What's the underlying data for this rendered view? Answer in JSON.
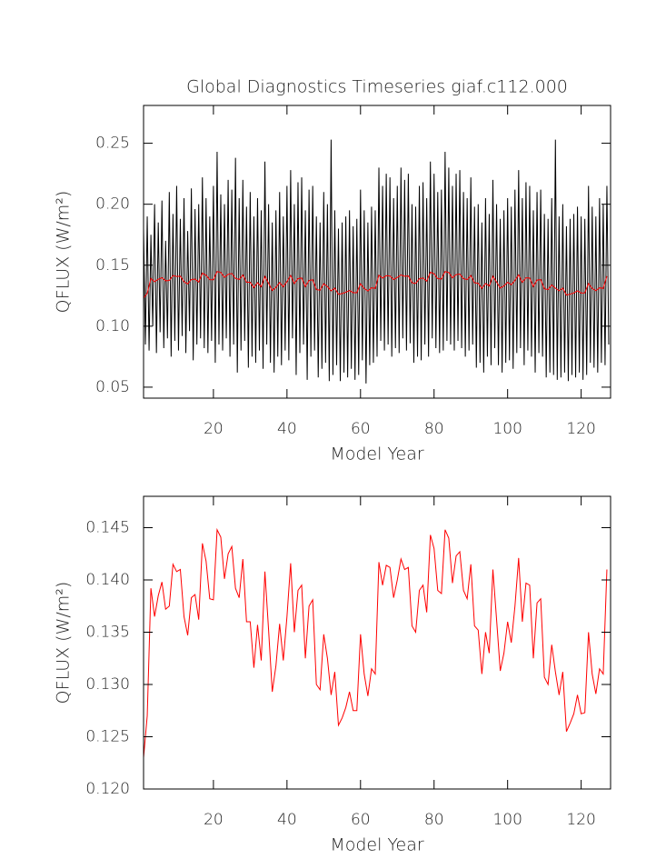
{
  "chart_data": [
    {
      "type": "line",
      "title": "Global Diagnostics Timeseries giaf.c112.000",
      "xlabel": "Model Year",
      "ylabel": "QFLUX (W/m²)",
      "xlim": [
        1,
        128
      ],
      "ylim": [
        0.041,
        0.281
      ],
      "xticks": [
        20,
        40,
        60,
        80,
        100,
        120
      ],
      "yticks": [
        0.05,
        {
          "value": 0.1,
          "label": "0.10"
        },
        0.15,
        {
          "value": 0.2,
          "label": "0.20"
        },
        0.25
      ],
      "series": [
        {
          "color": "#000000",
          "x": [
            1,
            1.5,
            2,
            2.5,
            3,
            3.5,
            4,
            4.5,
            5,
            5.5,
            6,
            6.5,
            7,
            7.5,
            8,
            8.5,
            9,
            9.5,
            10,
            10.5,
            11,
            11.5,
            12,
            12.5,
            13,
            13.5,
            14,
            14.5,
            15,
            15.5,
            16,
            16.5,
            17,
            17.5,
            18,
            18.5,
            19,
            19.5,
            20,
            20.5,
            21,
            21.5,
            22,
            22.5,
            23,
            23.5,
            24,
            24.5,
            25,
            25.5,
            26,
            26.5,
            27,
            27.5,
            28,
            28.5,
            29,
            29.5,
            30,
            30.5,
            31,
            31.5,
            32,
            32.5,
            33,
            33.5,
            34,
            34.5,
            35,
            35.5,
            36,
            36.5,
            37,
            37.5,
            38,
            38.5,
            39,
            39.5,
            40,
            40.5,
            41,
            41.5,
            42,
            42.5,
            43,
            43.5,
            44,
            44.5,
            45,
            45.5,
            46,
            46.5,
            47,
            47.5,
            48,
            48.5,
            49,
            49.5,
            50,
            50.5,
            51,
            51.5,
            52,
            52.5,
            53,
            53.5,
            54,
            54.5,
            55,
            55.5,
            56,
            56.5,
            57,
            57.5,
            58,
            58.5,
            59,
            59.5,
            60,
            60.5,
            61,
            61.5,
            62,
            62.5,
            63,
            63.5,
            64,
            64.5,
            65,
            65.5,
            66,
            66.5,
            67,
            67.5,
            68,
            68.5,
            69,
            69.5,
            70,
            70.5,
            71,
            71.5,
            72,
            72.5,
            73,
            73.5,
            74,
            74.5,
            75,
            75.5,
            76,
            76.5,
            77,
            77.5,
            78,
            78.5,
            79,
            79.5,
            80,
            80.5,
            81,
            81.5,
            82,
            82.5,
            83,
            83.5,
            84,
            84.5,
            85,
            85.5,
            86,
            86.5,
            87,
            87.5,
            88,
            88.5,
            89,
            89.5,
            90,
            90.5,
            91,
            91.5,
            92,
            92.5,
            93,
            93.5,
            94,
            94.5,
            95,
            95.5,
            96,
            96.5,
            97,
            97.5,
            98,
            98.5,
            99,
            99.5,
            100,
            100.5,
            101,
            101.5,
            102,
            102.5,
            103,
            103.5,
            104,
            104.5,
            105,
            105.5,
            106,
            106.5,
            107,
            107.5,
            108,
            108.5,
            109,
            109.5,
            110,
            110.5,
            111,
            111.5,
            112,
            112.5,
            113,
            113.5,
            114,
            114.5,
            115,
            115.5,
            116,
            116.5,
            117,
            117.5,
            118,
            118.5,
            119,
            119.5,
            120,
            120.5,
            121,
            121.5,
            122,
            122.5,
            123,
            123.5,
            124,
            124.5,
            125,
            125.5,
            126,
            126.5,
            127,
            127.5
          ],
          "values": [
            0.18,
            0.085,
            0.19,
            0.08,
            0.175,
            0.1,
            0.2,
            0.078,
            0.185,
            0.095,
            0.203,
            0.082,
            0.17,
            0.09,
            0.21,
            0.075,
            0.192,
            0.088,
            0.215,
            0.08,
            0.188,
            0.092,
            0.205,
            0.078,
            0.178,
            0.096,
            0.213,
            0.072,
            0.196,
            0.085,
            0.2,
            0.09,
            0.222,
            0.082,
            0.205,
            0.078,
            0.19,
            0.088,
            0.215,
            0.07,
            0.243,
            0.085,
            0.208,
            0.08,
            0.2,
            0.09,
            0.22,
            0.075,
            0.212,
            0.085,
            0.238,
            0.062,
            0.205,
            0.08,
            0.22,
            0.088,
            0.198,
            0.066,
            0.21,
            0.075,
            0.19,
            0.07,
            0.205,
            0.08,
            0.195,
            0.065,
            0.235,
            0.085,
            0.2,
            0.07,
            0.185,
            0.062,
            0.195,
            0.075,
            0.21,
            0.068,
            0.19,
            0.08,
            0.215,
            0.072,
            0.228,
            0.09,
            0.2,
            0.06,
            0.218,
            0.078,
            0.222,
            0.085,
            0.195,
            0.056,
            0.212,
            0.075,
            0.215,
            0.08,
            0.19,
            0.058,
            0.185,
            0.065,
            0.21,
            0.07,
            0.2,
            0.055,
            0.253,
            0.06,
            0.195,
            0.068,
            0.18,
            0.055,
            0.185,
            0.062,
            0.19,
            0.058,
            0.195,
            0.065,
            0.182,
            0.056,
            0.188,
            0.06,
            0.212,
            0.072,
            0.195,
            0.053,
            0.185,
            0.068,
            0.198,
            0.07,
            0.195,
            0.075,
            0.23,
            0.088,
            0.215,
            0.08,
            0.225,
            0.085,
            0.222,
            0.075,
            0.205,
            0.082,
            0.215,
            0.078,
            0.23,
            0.09,
            0.22,
            0.08,
            0.225,
            0.086,
            0.2,
            0.07,
            0.198,
            0.075,
            0.215,
            0.072,
            0.218,
            0.085,
            0.205,
            0.075,
            0.235,
            0.09,
            0.225,
            0.082,
            0.21,
            0.078,
            0.212,
            0.08,
            0.243,
            0.088,
            0.23,
            0.085,
            0.215,
            0.08,
            0.225,
            0.088,
            0.228,
            0.082,
            0.21,
            0.075,
            0.205,
            0.08,
            0.222,
            0.085,
            0.198,
            0.066,
            0.2,
            0.07,
            0.185,
            0.062,
            0.205,
            0.075,
            0.192,
            0.068,
            0.22,
            0.082,
            0.2,
            0.068,
            0.188,
            0.062,
            0.195,
            0.07,
            0.205,
            0.072,
            0.198,
            0.065,
            0.212,
            0.078,
            0.228,
            0.082,
            0.205,
            0.068,
            0.218,
            0.08,
            0.215,
            0.075,
            0.195,
            0.062,
            0.21,
            0.078,
            0.212,
            0.075,
            0.192,
            0.058,
            0.188,
            0.062,
            0.205,
            0.06,
            0.253,
            0.056,
            0.19,
            0.058,
            0.2,
            0.062,
            0.182,
            0.055,
            0.188,
            0.06,
            0.192,
            0.058,
            0.198,
            0.062,
            0.19,
            0.056,
            0.188,
            0.06,
            0.215,
            0.07,
            0.198,
            0.066,
            0.19,
            0.062,
            0.205,
            0.07,
            0.2,
            0.068,
            0.215,
            0.085
          ]
        },
        {
          "color": "#ff0000",
          "x": [
            1,
            2,
            3,
            4,
            5,
            6,
            7,
            8,
            9,
            10,
            11,
            12,
            13,
            14,
            15,
            16,
            17,
            18,
            19,
            20,
            21,
            22,
            23,
            24,
            25,
            26,
            27,
            28,
            29,
            30,
            31,
            32,
            33,
            34,
            35,
            36,
            37,
            38,
            39,
            40,
            41,
            42,
            43,
            44,
            45,
            46,
            47,
            48,
            49,
            50,
            51,
            52,
            53,
            54,
            55,
            56,
            57,
            58,
            59,
            60,
            61,
            62,
            63,
            64,
            65,
            66,
            67,
            68,
            69,
            70,
            71,
            72,
            73,
            74,
            75,
            76,
            77,
            78,
            79,
            80,
            81,
            82,
            83,
            84,
            85,
            86,
            87,
            88,
            89,
            90,
            91,
            92,
            93,
            94,
            95,
            96,
            97,
            98,
            99,
            100,
            101,
            102,
            103,
            104,
            105,
            106,
            107,
            108,
            109,
            110,
            111,
            112,
            113,
            114,
            115,
            116,
            117,
            118,
            119,
            120,
            121,
            122,
            123,
            124,
            125,
            126,
            127
          ],
          "values": [
            0.123,
            0.127,
            0.1392,
            0.1365,
            0.1385,
            0.1398,
            0.1372,
            0.1375,
            0.1415,
            0.1408,
            0.141,
            0.1365,
            0.1347,
            0.1383,
            0.1386,
            0.1362,
            0.1435,
            0.1418,
            0.1382,
            0.1381,
            0.1448,
            0.1441,
            0.1401,
            0.1425,
            0.1432,
            0.1392,
            0.1383,
            0.142,
            0.136,
            0.136,
            0.1316,
            0.1357,
            0.1323,
            0.1408,
            0.1352,
            0.1293,
            0.1318,
            0.1358,
            0.1323,
            0.1365,
            0.1416,
            0.135,
            0.139,
            0.1395,
            0.1325,
            0.1375,
            0.1381,
            0.13,
            0.1295,
            0.1348,
            0.1325,
            0.129,
            0.1312,
            0.1261,
            0.1268,
            0.1278,
            0.1293,
            0.1275,
            0.1275,
            0.1348,
            0.131,
            0.1289,
            0.1315,
            0.131,
            0.1417,
            0.1395,
            0.1414,
            0.1412,
            0.1383,
            0.14,
            0.142,
            0.141,
            0.1412,
            0.1356,
            0.135,
            0.139,
            0.1395,
            0.1369,
            0.1443,
            0.143,
            0.139,
            0.1387,
            0.1448,
            0.144,
            0.1397,
            0.1423,
            0.1427,
            0.139,
            0.1382,
            0.1415,
            0.1356,
            0.1352,
            0.131,
            0.135,
            0.133,
            0.141,
            0.1362,
            0.1313,
            0.133,
            0.136,
            0.134,
            0.1375,
            0.1421,
            0.136,
            0.1397,
            0.1395,
            0.1325,
            0.1378,
            0.1382,
            0.1307,
            0.13,
            0.1338,
            0.1312,
            0.129,
            0.1312,
            0.1255,
            0.1263,
            0.1272,
            0.129,
            0.1272,
            0.1273,
            0.135,
            0.131,
            0.1291,
            0.1315,
            0.131,
            0.141
          ]
        }
      ]
    },
    {
      "type": "line",
      "xlabel": "Model Year",
      "ylabel": "QFLUX (W/m²)",
      "xlim": [
        1,
        128
      ],
      "ylim": [
        0.12,
        0.148
      ],
      "xticks": [
        20,
        40,
        60,
        80,
        100,
        120
      ],
      "yticks": [
        {
          "value": 0.12,
          "label": "0.120"
        },
        0.125,
        {
          "value": 0.13,
          "label": "0.130"
        },
        0.135,
        {
          "value": 0.14,
          "label": "0.140"
        },
        0.145
      ],
      "series": [
        {
          "color": "#ff0000",
          "x": [
            1,
            2,
            3,
            4,
            5,
            6,
            7,
            8,
            9,
            10,
            11,
            12,
            13,
            14,
            15,
            16,
            17,
            18,
            19,
            20,
            21,
            22,
            23,
            24,
            25,
            26,
            27,
            28,
            29,
            30,
            31,
            32,
            33,
            34,
            35,
            36,
            37,
            38,
            39,
            40,
            41,
            42,
            43,
            44,
            45,
            46,
            47,
            48,
            49,
            50,
            51,
            52,
            53,
            54,
            55,
            56,
            57,
            58,
            59,
            60,
            61,
            62,
            63,
            64,
            65,
            66,
            67,
            68,
            69,
            70,
            71,
            72,
            73,
            74,
            75,
            76,
            77,
            78,
            79,
            80,
            81,
            82,
            83,
            84,
            85,
            86,
            87,
            88,
            89,
            90,
            91,
            92,
            93,
            94,
            95,
            96,
            97,
            98,
            99,
            100,
            101,
            102,
            103,
            104,
            105,
            106,
            107,
            108,
            109,
            110,
            111,
            112,
            113,
            114,
            115,
            116,
            117,
            118,
            119,
            120,
            121,
            122,
            123,
            124,
            125,
            126,
            127
          ],
          "values": [
            0.123,
            0.127,
            0.1392,
            0.1365,
            0.1385,
            0.1398,
            0.1372,
            0.1375,
            0.1415,
            0.1408,
            0.141,
            0.1365,
            0.1347,
            0.1383,
            0.1386,
            0.1362,
            0.1435,
            0.1418,
            0.1382,
            0.1381,
            0.1448,
            0.1441,
            0.1401,
            0.1425,
            0.1432,
            0.1392,
            0.1383,
            0.142,
            0.136,
            0.136,
            0.1316,
            0.1357,
            0.1323,
            0.1408,
            0.1352,
            0.1293,
            0.1318,
            0.1358,
            0.1323,
            0.1365,
            0.1416,
            0.135,
            0.139,
            0.1395,
            0.1325,
            0.1375,
            0.1381,
            0.13,
            0.1295,
            0.1348,
            0.1325,
            0.129,
            0.1312,
            0.1261,
            0.1268,
            0.1278,
            0.1293,
            0.1275,
            0.1275,
            0.1348,
            0.131,
            0.1289,
            0.1315,
            0.131,
            0.1417,
            0.1395,
            0.1414,
            0.1412,
            0.1383,
            0.14,
            0.142,
            0.141,
            0.1412,
            0.1356,
            0.135,
            0.139,
            0.1395,
            0.1369,
            0.1443,
            0.143,
            0.139,
            0.1387,
            0.1448,
            0.144,
            0.1397,
            0.1423,
            0.1427,
            0.139,
            0.1382,
            0.1415,
            0.1356,
            0.1352,
            0.131,
            0.135,
            0.133,
            0.141,
            0.1362,
            0.1313,
            0.133,
            0.136,
            0.134,
            0.1375,
            0.1421,
            0.136,
            0.1397,
            0.1395,
            0.1325,
            0.1378,
            0.1382,
            0.1307,
            0.13,
            0.1338,
            0.1312,
            0.129,
            0.1312,
            0.1255,
            0.1263,
            0.1272,
            0.129,
            0.1272,
            0.1273,
            0.135,
            0.131,
            0.1291,
            0.1315,
            0.131,
            0.141
          ]
        }
      ]
    }
  ]
}
